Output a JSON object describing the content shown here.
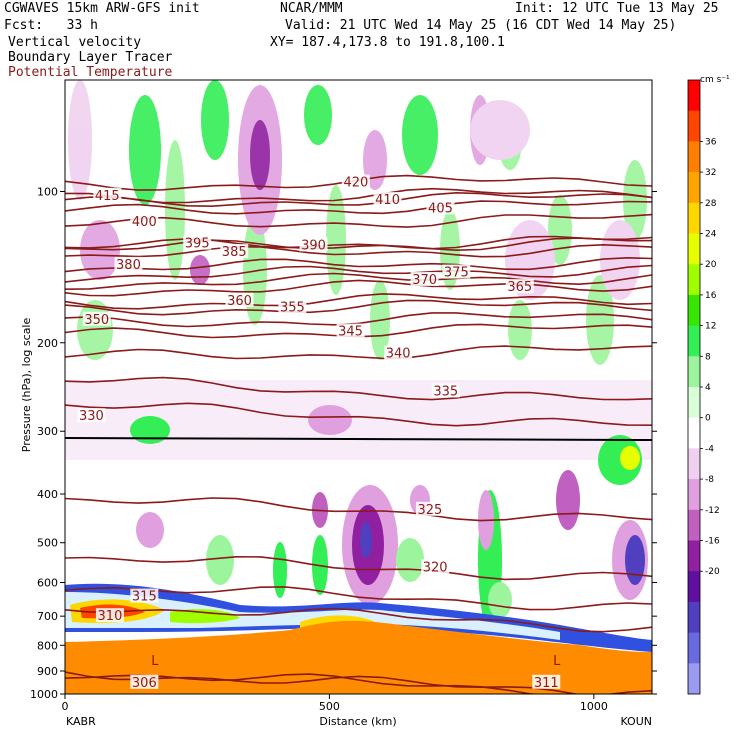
{
  "header": {
    "line1_left": "CGWAVES 15km ARW-GFS init",
    "line1_mid": "NCAR/MMM",
    "line1_right": "Init: 12 UTC Tue 13 May 25",
    "line2_left": "Fcst:   33 h",
    "line2_right": "Valid: 21 UTC Wed 14 May 25 (16 CDT Wed 14 May 25)",
    "line3_left": "Vertical velocity",
    "line3_right": "XY= 187.4,173.8 to 191.8,100.1",
    "line4_left": "Boundary Layer Tracer",
    "line5_left": "Potential Temperature"
  },
  "colors": {
    "theta": "#8b1a1a",
    "terrain": "#ff8c00",
    "tracer_line": "#000000"
  },
  "chart_data": {
    "type": "heatmap",
    "title": "Vertical velocity",
    "ylabel": "Pressure (hPa), log scale",
    "xlabel": "Distance (km)",
    "x_endpoints": {
      "left": "KABR",
      "right": "KOUN"
    },
    "xlim": [
      0,
      1110
    ],
    "ylim": [
      1000,
      60
    ],
    "yscale": "log",
    "x_ticks": [
      0,
      500,
      1000
    ],
    "y_ticks": [
      100,
      200,
      300,
      400,
      500,
      600,
      700,
      800,
      900,
      1000
    ],
    "colorbar": {
      "units": "cm s⁻¹",
      "labels": [
        "36",
        "32",
        "28",
        "24",
        "20",
        "16",
        "12",
        "8",
        "4",
        "0",
        "-4",
        "-8",
        "-12",
        "-16",
        "-20"
      ],
      "colors": [
        "#ff0000",
        "#ff4500",
        "#ff7f00",
        "#ffa500",
        "#ffd700",
        "#e6ff00",
        "#9fff00",
        "#39e600",
        "#33ee55",
        "#9cf59c",
        "#d9ffd9",
        "#ffffff",
        "#f0d0f0",
        "#e0a0e0",
        "#c060c0",
        "#9020a0",
        "#6010a0",
        "#5040c0",
        "#6a6ae0",
        "#9a9af0"
      ]
    },
    "theta_contours": [
      {
        "value": 306,
        "label_x": 150,
        "label_p": 950
      },
      {
        "value": 310,
        "label_x": 85,
        "label_p": 700
      },
      {
        "value": 311,
        "label_x": 910,
        "label_p": 950
      },
      {
        "value": 315,
        "label_x": 150,
        "label_p": 640
      },
      {
        "value": 320,
        "label_x": 700,
        "label_p": 560
      },
      {
        "value": 325,
        "label_x": 690,
        "label_p": 430
      },
      {
        "value": 330,
        "label_x": 50,
        "label_p": 280
      },
      {
        "value": 335,
        "label_x": 720,
        "label_p": 250
      },
      {
        "value": 340,
        "label_x": 630,
        "label_p": 210
      },
      {
        "value": 345,
        "label_x": 540,
        "label_p": 190
      },
      {
        "value": 350,
        "label_x": 60,
        "label_p": 180
      },
      {
        "value": 355,
        "label_x": 430,
        "label_p": 170
      },
      {
        "value": 360,
        "label_x": 330,
        "label_p": 165
      },
      {
        "value": 365,
        "label_x": 860,
        "label_p": 155
      },
      {
        "value": 370,
        "label_x": 680,
        "label_p": 150
      },
      {
        "value": 375,
        "label_x": 740,
        "label_p": 145
      },
      {
        "value": 380,
        "label_x": 120,
        "label_p": 140
      },
      {
        "value": 385,
        "label_x": 320,
        "label_p": 132
      },
      {
        "value": 390,
        "label_x": 470,
        "label_p": 128
      },
      {
        "value": 395,
        "label_x": 250,
        "label_p": 127
      },
      {
        "value": 400,
        "label_x": 150,
        "label_p": 115
      },
      {
        "value": 405,
        "label_x": 710,
        "label_p": 108
      },
      {
        "value": 410,
        "label_x": 610,
        "label_p": 104
      },
      {
        "value": 415,
        "label_x": 80,
        "label_p": 102
      },
      {
        "value": 420,
        "label_x": 550,
        "label_p": 96
      }
    ],
    "low_markers": [
      {
        "label": "L",
        "x": 170,
        "p": 875
      },
      {
        "label": "L",
        "x": 930,
        "p": 875
      }
    ]
  }
}
